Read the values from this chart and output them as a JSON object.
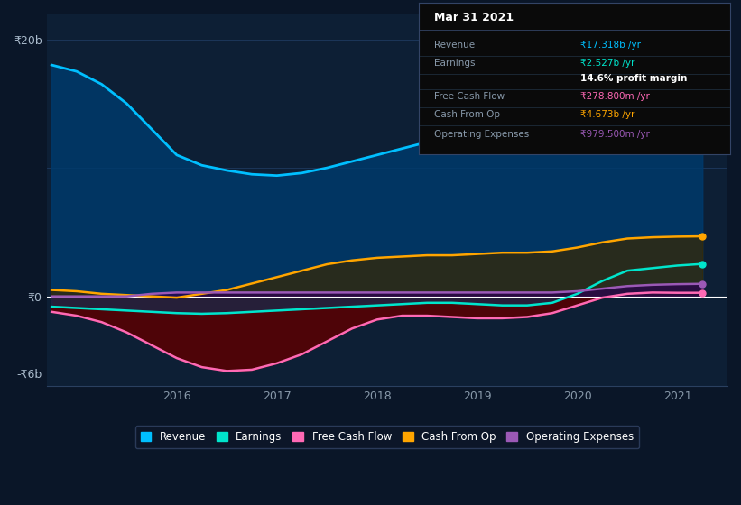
{
  "background_color": "#0a1628",
  "plot_bg_color": "#0d1f35",
  "grid_color": "#1e3a5f",
  "ylim": [
    -7000000000,
    22000000000
  ],
  "xlim": [
    2014.7,
    2021.5
  ],
  "yticks_labels": [
    "₹20b",
    "₹0",
    "-₹6b"
  ],
  "yticks_values": [
    20000000000,
    0,
    -6000000000
  ],
  "xtick_labels": [
    "2016",
    "2017",
    "2018",
    "2019",
    "2020",
    "2021"
  ],
  "xtick_values": [
    2016,
    2017,
    2018,
    2019,
    2020,
    2021
  ],
  "series": {
    "Revenue": {
      "color": "#00bfff",
      "fill_color": "#003a6b",
      "x": [
        2014.75,
        2015.0,
        2015.25,
        2015.5,
        2015.75,
        2016.0,
        2016.25,
        2016.5,
        2016.75,
        2017.0,
        2017.25,
        2017.5,
        2017.75,
        2018.0,
        2018.25,
        2018.5,
        2018.75,
        2019.0,
        2019.25,
        2019.5,
        2019.75,
        2020.0,
        2020.25,
        2020.5,
        2020.75,
        2021.0,
        2021.25
      ],
      "y": [
        18000000000,
        17500000000,
        16500000000,
        15000000000,
        13000000000,
        11000000000,
        10200000000,
        9800000000,
        9500000000,
        9400000000,
        9600000000,
        10000000000,
        10500000000,
        11000000000,
        11500000000,
        12000000000,
        12500000000,
        13000000000,
        13500000000,
        14000000000,
        14500000000,
        15500000000,
        17500000000,
        19000000000,
        18500000000,
        17800000000,
        17318000000
      ]
    },
    "Earnings": {
      "color": "#00e5cc",
      "fill_color": "#003a6b",
      "x": [
        2014.75,
        2015.0,
        2015.25,
        2015.5,
        2015.75,
        2016.0,
        2016.25,
        2016.5,
        2016.75,
        2017.0,
        2017.25,
        2017.5,
        2017.75,
        2018.0,
        2018.25,
        2018.5,
        2018.75,
        2019.0,
        2019.25,
        2019.5,
        2019.75,
        2020.0,
        2020.25,
        2020.5,
        2020.75,
        2021.0,
        2021.25
      ],
      "y": [
        -800000000,
        -900000000,
        -1000000000,
        -1100000000,
        -1200000000,
        -1300000000,
        -1350000000,
        -1300000000,
        -1200000000,
        -1100000000,
        -1000000000,
        -900000000,
        -800000000,
        -700000000,
        -600000000,
        -500000000,
        -500000000,
        -600000000,
        -700000000,
        -700000000,
        -500000000,
        200000000,
        1200000000,
        2000000000,
        2200000000,
        2400000000,
        2527000000
      ]
    },
    "Free Cash Flow": {
      "color": "#ff69b4",
      "fill_color": "#5a0000",
      "x": [
        2014.75,
        2015.0,
        2015.25,
        2015.5,
        2015.75,
        2016.0,
        2016.25,
        2016.5,
        2016.75,
        2017.0,
        2017.25,
        2017.5,
        2017.75,
        2018.0,
        2018.25,
        2018.5,
        2018.75,
        2019.0,
        2019.25,
        2019.5,
        2019.75,
        2020.0,
        2020.25,
        2020.5,
        2020.75,
        2021.0,
        2021.25
      ],
      "y": [
        -1200000000,
        -1500000000,
        -2000000000,
        -2800000000,
        -3800000000,
        -4800000000,
        -5500000000,
        -5800000000,
        -5700000000,
        -5200000000,
        -4500000000,
        -3500000000,
        -2500000000,
        -1800000000,
        -1500000000,
        -1500000000,
        -1600000000,
        -1700000000,
        -1700000000,
        -1600000000,
        -1300000000,
        -700000000,
        -100000000,
        200000000,
        300000000,
        278000000,
        278800000
      ]
    },
    "Cash From Op": {
      "color": "#ffa500",
      "fill_color": "#3a2800",
      "x": [
        2014.75,
        2015.0,
        2015.25,
        2015.5,
        2015.75,
        2016.0,
        2016.25,
        2016.5,
        2016.75,
        2017.0,
        2017.25,
        2017.5,
        2017.75,
        2018.0,
        2018.25,
        2018.5,
        2018.75,
        2019.0,
        2019.25,
        2019.5,
        2019.75,
        2020.0,
        2020.25,
        2020.5,
        2020.75,
        2021.0,
        2021.25
      ],
      "y": [
        500000000,
        400000000,
        200000000,
        100000000,
        0,
        -100000000,
        200000000,
        500000000,
        1000000000,
        1500000000,
        2000000000,
        2500000000,
        2800000000,
        3000000000,
        3100000000,
        3200000000,
        3200000000,
        3300000000,
        3400000000,
        3400000000,
        3500000000,
        3800000000,
        4200000000,
        4500000000,
        4600000000,
        4650000000,
        4673000000
      ]
    },
    "Operating Expenses": {
      "color": "#9b59b6",
      "fill_color": "#2a0050",
      "x": [
        2014.75,
        2015.0,
        2015.25,
        2015.5,
        2015.75,
        2016.0,
        2016.25,
        2016.5,
        2016.75,
        2017.0,
        2017.25,
        2017.5,
        2017.75,
        2018.0,
        2018.25,
        2018.5,
        2018.75,
        2019.0,
        2019.25,
        2019.5,
        2019.75,
        2020.0,
        2020.25,
        2020.5,
        2020.75,
        2021.0,
        2021.25
      ],
      "y": [
        0,
        0,
        0,
        0,
        200000000,
        300000000,
        300000000,
        300000000,
        300000000,
        300000000,
        300000000,
        300000000,
        300000000,
        300000000,
        300000000,
        300000000,
        300000000,
        300000000,
        300000000,
        300000000,
        300000000,
        400000000,
        600000000,
        800000000,
        900000000,
        950000000,
        979500000
      ]
    }
  },
  "info_box": {
    "title": "Mar 31 2021",
    "rows": [
      {
        "label": "Revenue",
        "value": "₹17.318b /yr",
        "value_color": "#00bfff"
      },
      {
        "label": "Earnings",
        "value": "₹2.527b /yr",
        "value_color": "#00e5cc"
      },
      {
        "label": "",
        "value": "14.6% profit margin",
        "value_color": "#ffffff",
        "value_bold": true
      },
      {
        "label": "Free Cash Flow",
        "value": "₹278.800m /yr",
        "value_color": "#ff69b4"
      },
      {
        "label": "Cash From Op",
        "value": "₹4.673b /yr",
        "value_color": "#ffa500"
      },
      {
        "label": "Operating Expenses",
        "value": "₹979.500m /yr",
        "value_color": "#9b59b6"
      }
    ]
  },
  "legend": [
    {
      "label": "Revenue",
      "color": "#00bfff"
    },
    {
      "label": "Earnings",
      "color": "#00e5cc"
    },
    {
      "label": "Free Cash Flow",
      "color": "#ff69b4"
    },
    {
      "label": "Cash From Op",
      "color": "#ffa500"
    },
    {
      "label": "Operating Expenses",
      "color": "#9b59b6"
    }
  ]
}
